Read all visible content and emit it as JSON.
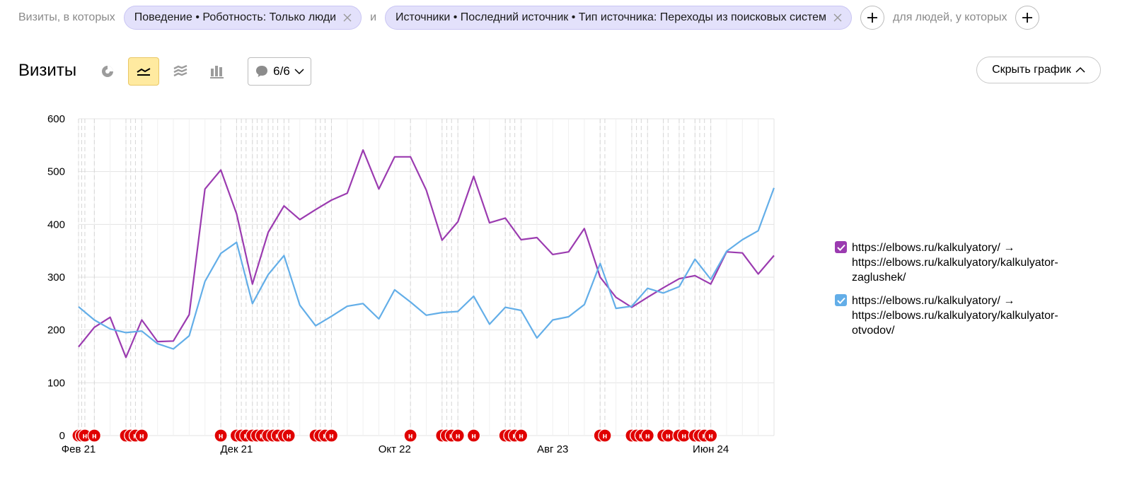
{
  "filters": {
    "visits_where_label": "Визиты, в которых",
    "chip1": "Поведение • Роботность: Только люди",
    "and_label": "и",
    "chip2": "Источники • Последний источник • Тип источника: Переходы из поисковых систем",
    "people_label": "для людей, у которых"
  },
  "header": {
    "title": "Визиты",
    "notes_count": "6/6",
    "hide_chart_label": "Скрыть график"
  },
  "icons": {
    "pie": "pie-chart-icon",
    "line": "line-chart-icon",
    "area": "stacked-area-icon",
    "bar": "bar-chart-icon",
    "notes": "comment-icon",
    "add": "plus-icon",
    "remove": "close-icon"
  },
  "colors": {
    "series1": "#9b3bb0",
    "series2": "#63aee8",
    "chip_bg": "#e3e1fb",
    "active_view": "#ffeaa0",
    "note_marker": "#e00000"
  },
  "chart_data": {
    "type": "line",
    "ylim": [
      0,
      600
    ],
    "yticks": [
      0,
      100,
      200,
      300,
      400,
      500,
      600
    ],
    "x_tick_labels": [
      "Фев 21",
      "Дек 21",
      "Окт 22",
      "Авг 23",
      "Июн 24"
    ],
    "x_tick_index": [
      0,
      10,
      20,
      30,
      40
    ],
    "num_points": 45,
    "grid": true,
    "legend_position": "right",
    "note_marker_label": "н",
    "series": [
      {
        "name": "https://elbows.ru/kalkulyatory/ → https://elbows.ru/kalkulyatory/kalkulyator-zaglushek/",
        "color": "#9b3bb0",
        "values": [
          168,
          205,
          224,
          148,
          219,
          178,
          179,
          229,
          467,
          503,
          420,
          287,
          385,
          435,
          409,
          428,
          446,
          459,
          541,
          467,
          528,
          528,
          465,
          370,
          405,
          491,
          403,
          412,
          371,
          375,
          343,
          348,
          392,
          300,
          262,
          243,
          262,
          280,
          297,
          303,
          287,
          348,
          346,
          306,
          341
        ]
      },
      {
        "name": "https://elbows.ru/kalkulyatory/ → https://elbows.ru/kalkulyatory/kalkulyator-otvodov/",
        "color": "#63aee8",
        "values": [
          244,
          219,
          202,
          195,
          198,
          174,
          164,
          189,
          292,
          345,
          366,
          250,
          305,
          341,
          247,
          208,
          226,
          245,
          250,
          221,
          276,
          253,
          228,
          233,
          235,
          264,
          211,
          243,
          237,
          185,
          219,
          225,
          248,
          326,
          241,
          245,
          279,
          270,
          282,
          334,
          296,
          349,
          371,
          388,
          469
        ]
      }
    ],
    "note_positions": [
      0,
      0.2,
      0.4,
      1,
      3,
      3.3,
      3.6,
      4,
      9,
      10,
      10.3,
      10.6,
      11,
      11.3,
      11.6,
      12,
      12.3,
      12.6,
      13,
      13.3,
      15,
      15.3,
      15.6,
      16,
      21,
      23,
      23.3,
      23.6,
      24,
      25,
      27,
      27.3,
      27.6,
      28,
      33,
      33.3,
      35,
      35.3,
      35.6,
      36,
      37,
      37.3,
      38,
      38.3,
      39,
      39.3,
      39.6,
      40
    ]
  }
}
